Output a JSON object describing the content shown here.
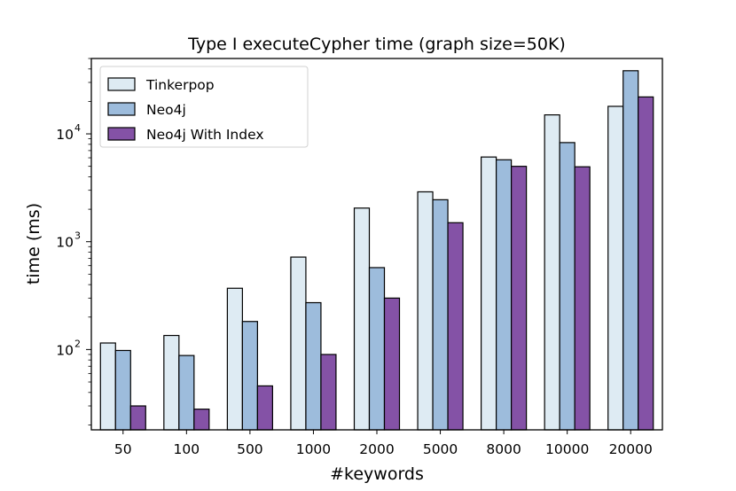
{
  "chart_data": {
    "type": "bar",
    "title": "Type I executeCypher time (graph size=50K)",
    "xlabel": "#keywords",
    "ylabel": "time (ms)",
    "yscale": "log",
    "ylim": [
      18,
      50000
    ],
    "grid": false,
    "legend_position": "top-left",
    "categories": [
      "50",
      "100",
      "500",
      "1000",
      "2000",
      "5000",
      "8000",
      "10000",
      "20000"
    ],
    "y_ticks": [
      {
        "value": 100,
        "base": "10",
        "exp": "2"
      },
      {
        "value": 1000,
        "base": "10",
        "exp": "3"
      },
      {
        "value": 10000,
        "base": "10",
        "exp": "4"
      }
    ],
    "series": [
      {
        "name": "Tinkerpop",
        "color": "#deebf3",
        "values": [
          115,
          135,
          370,
          720,
          2050,
          2900,
          6100,
          15000,
          18000
        ]
      },
      {
        "name": "Neo4j",
        "color": "#9dbcdc",
        "values": [
          98,
          88,
          182,
          272,
          575,
          2450,
          5750,
          8300,
          38500
        ]
      },
      {
        "name": "Neo4j With Index",
        "color": "#8452a6",
        "values": [
          30,
          28,
          46,
          90,
          300,
          1500,
          5000,
          4950,
          22000
        ]
      }
    ]
  }
}
